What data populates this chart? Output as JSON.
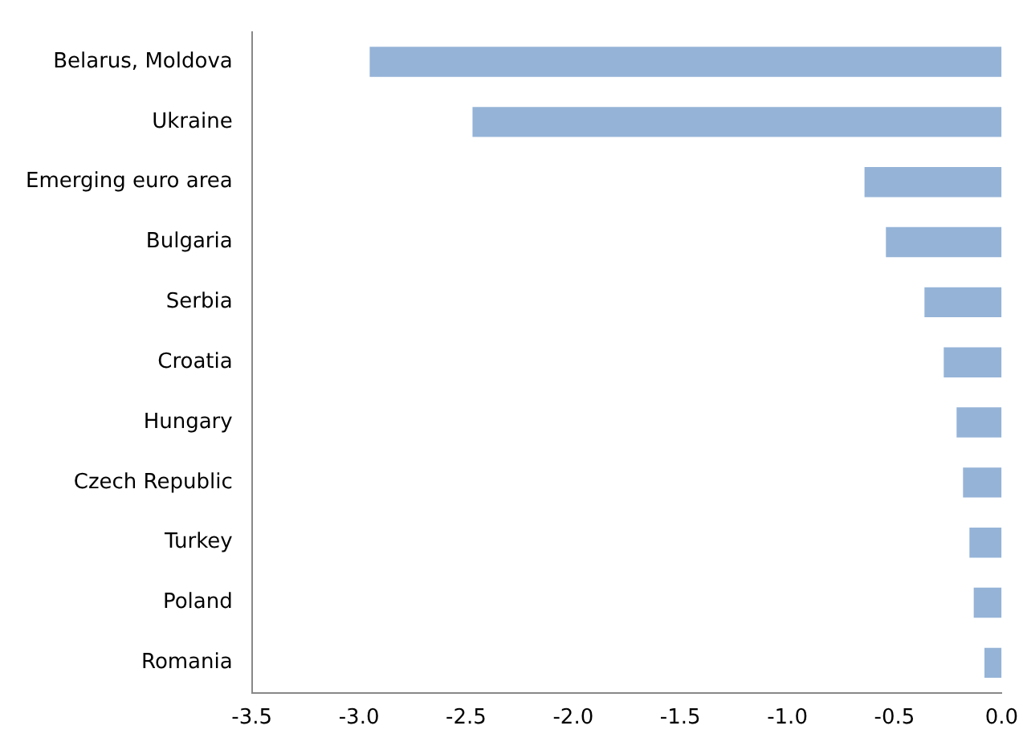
{
  "chart_data": {
    "type": "bar",
    "orientation": "horizontal",
    "categories": [
      "Belarus, Moldova",
      "Ukraine",
      "Emerging euro area",
      "Bulgaria",
      "Serbia",
      "Croatia",
      "Hungary",
      "Czech Republic",
      "Turkey",
      "Poland",
      "Romania"
    ],
    "values": [
      -2.95,
      -2.47,
      -0.64,
      -0.54,
      -0.36,
      -0.27,
      -0.21,
      -0.18,
      -0.15,
      -0.13,
      -0.08
    ],
    "color": "#95b3d7",
    "xlim": [
      -3.5,
      0
    ],
    "xticks": [
      {
        "value": -3.5,
        "label": "-3.5"
      },
      {
        "value": -3,
        "label": "-3.0"
      },
      {
        "value": -2.5,
        "label": "-2.5"
      },
      {
        "value": -2,
        "label": "-2.0"
      },
      {
        "value": -1.5,
        "label": "-1.5"
      },
      {
        "value": -1,
        "label": "-1.0"
      },
      {
        "value": -0.5,
        "label": "-0.5"
      },
      {
        "value": 0,
        "label": "0.0"
      }
    ],
    "grid": false,
    "legend": false
  }
}
